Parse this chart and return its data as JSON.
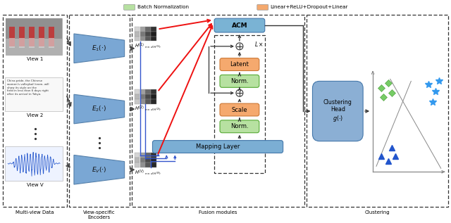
{
  "colors": {
    "blue_encoder": "#7aa7d4",
    "blue_mapping": "#7baed4",
    "blue_clustering_head": "#8bafd4",
    "orange_block": "#f5a96e",
    "green_block": "#b7e1a1",
    "acm_block": "#7ab3d4",
    "bg": "#ffffff"
  },
  "legend_items": [
    {
      "label": "Batch Normalization",
      "color": "#b7e1a1"
    },
    {
      "label": "Linear+ReLU+Dropout+Linear",
      "color": "#f5a96e"
    }
  ],
  "labels": {
    "view1": "View 1",
    "view2": "View 2",
    "viewV": "View V",
    "multiview": "Multi-view Data",
    "encoders": "View-specific\nEncoders",
    "fusion": "Fusion modules",
    "clustering": "Clustering",
    "acm": "ACM",
    "latent": "Latent",
    "norm": "Norm.",
    "scale": "Scale",
    "mapping": "Mapping Layer",
    "clustering_head": "Clustering\nHead\n$g(\\cdot)$",
    "Lx": "$L\\times$"
  }
}
